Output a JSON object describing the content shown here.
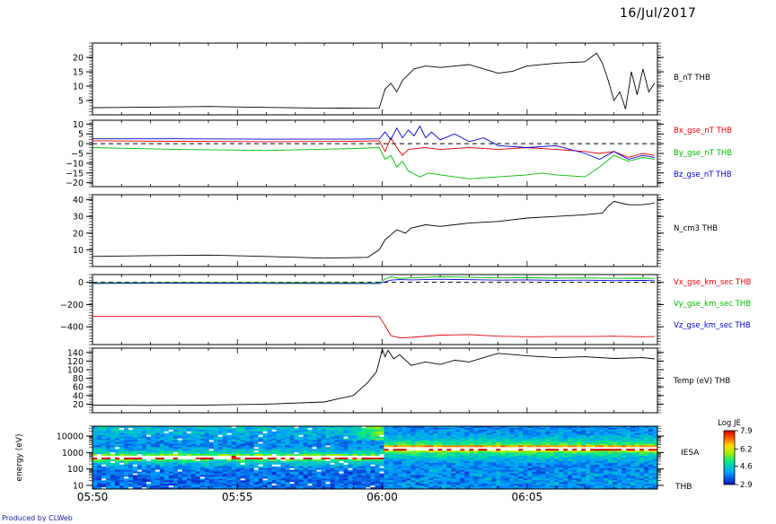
{
  "date": "16/Jul/2017",
  "footer": "Produced by CLWeb",
  "x_axis": {
    "labels": [
      "05:50",
      "05:55",
      "06:00",
      "06:05"
    ],
    "minutes": [
      0,
      5,
      10,
      15
    ],
    "range_minutes": [
      0,
      19.5
    ]
  },
  "spectrogram": {
    "ylabel": "energy (eV)",
    "yticks": [
      "10000",
      "1000",
      "100",
      "10"
    ],
    "label_top": "IESA",
    "label_bottom": "THB",
    "colorbar_title": "Log JE",
    "colorbar_ticks": [
      "7.9",
      "6.2",
      "4.6",
      "2.9"
    ],
    "colorbar_range": [
      2.9,
      7.9
    ]
  },
  "chart_data": [
    {
      "type": "line",
      "x_unit": "minutes since 05:50 UT",
      "yticks": [
        5,
        10,
        15,
        20
      ],
      "ylim": [
        0,
        25
      ],
      "series": [
        {
          "name": "B_nT THB",
          "color": "#000000",
          "x": [
            0,
            2,
            4,
            6,
            8,
            9.9,
            10.1,
            10.3,
            10.5,
            10.7,
            10.9,
            11.1,
            11.5,
            12,
            13,
            14,
            14.5,
            15,
            16,
            17,
            17.4,
            17.6,
            17.8,
            18,
            18.2,
            18.4,
            18.6,
            18.8,
            19,
            19.2,
            19.4
          ],
          "y": [
            2.5,
            2.7,
            2.9,
            2.6,
            2.3,
            2.4,
            9,
            11,
            8,
            12,
            14,
            16,
            17,
            16.5,
            17.5,
            14.5,
            15.2,
            17,
            18,
            18.5,
            21.5,
            18,
            12,
            5,
            8,
            2,
            15,
            7,
            16,
            8,
            11
          ]
        }
      ]
    },
    {
      "type": "line",
      "x_unit": "minutes since 05:50 UT",
      "yticks": [
        10,
        5,
        0,
        -5,
        -10,
        -15,
        -20
      ],
      "ylim": [
        -22,
        12
      ],
      "reference_line": 0,
      "series": [
        {
          "name": "Bx_gse_nT THB",
          "color": "#e8000b",
          "x": [
            0,
            3,
            6,
            9,
            9.9,
            10.1,
            10.3,
            10.5,
            10.7,
            10.9,
            11.5,
            12,
            13,
            14,
            15,
            16,
            17,
            17.5,
            18,
            18.5,
            19,
            19.4
          ],
          "y": [
            1.5,
            1.2,
            1.0,
            1.2,
            1.5,
            -4,
            3,
            -2,
            -6,
            -3,
            -2,
            -3,
            -2,
            -3,
            -2,
            -3,
            -4,
            -5,
            -4,
            -7,
            -5,
            -6
          ]
        },
        {
          "name": "By_gse_nT THB",
          "color": "#00bb00",
          "x": [
            0,
            3,
            6,
            9,
            9.9,
            10.1,
            10.3,
            10.5,
            10.7,
            10.9,
            11.3,
            11.6,
            12,
            13,
            14,
            15,
            15.5,
            16,
            17,
            17.5,
            18,
            18.5,
            19,
            19.4
          ],
          "y": [
            -2,
            -3,
            -3.5,
            -2.5,
            -2,
            -8,
            -6,
            -12,
            -9,
            -14,
            -17,
            -15,
            -16,
            -18,
            -17,
            -16,
            -15,
            -16,
            -17,
            -12,
            -6,
            -9,
            -7,
            -8
          ]
        },
        {
          "name": "Bz_gse_nT THB",
          "color": "#0000d0",
          "x": [
            0,
            3,
            6,
            9,
            9.9,
            10.1,
            10.3,
            10.5,
            10.7,
            10.9,
            11.1,
            11.3,
            11.5,
            11.7,
            12,
            12.5,
            13,
            13.5,
            14,
            15,
            16,
            17,
            17.5,
            18,
            18.5,
            19,
            19.4
          ],
          "y": [
            2.5,
            2.5,
            2.3,
            2.3,
            2.5,
            6,
            2,
            8,
            3,
            7,
            4,
            9,
            3,
            6,
            2,
            5,
            1,
            3,
            -1,
            -2,
            -1,
            -5,
            -8,
            -4,
            -8,
            -6,
            -7
          ]
        }
      ]
    },
    {
      "type": "line",
      "x_unit": "minutes since 05:50 UT",
      "yticks": [
        10,
        20,
        30,
        40
      ],
      "ylim": [
        0,
        43
      ],
      "series": [
        {
          "name": "N_cm3 THB",
          "color": "#000000",
          "x": [
            0,
            2,
            4,
            6,
            8,
            9.5,
            9.9,
            10.1,
            10.3,
            10.5,
            10.8,
            11,
            11.5,
            12,
            13,
            14,
            15,
            16,
            17,
            17.6,
            17.8,
            18,
            18.5,
            19,
            19.4
          ],
          "y": [
            6,
            6.5,
            6.8,
            6,
            5,
            5.5,
            10,
            16,
            19,
            22,
            20,
            23,
            25,
            24,
            26,
            27,
            29,
            30,
            31,
            32,
            36,
            39,
            37,
            37,
            38
          ]
        }
      ]
    },
    {
      "type": "line",
      "x_unit": "minutes since 05:50 UT",
      "yticks": [
        0,
        -200,
        -400
      ],
      "ylim": [
        -560,
        70
      ],
      "reference_line": 0,
      "series": [
        {
          "name": "Vx_gse_km_sec THB",
          "color": "#e8000b",
          "x": [
            0,
            3,
            6,
            9,
            9.9,
            10.1,
            10.3,
            10.6,
            11,
            12,
            13,
            14,
            15,
            16,
            17,
            18,
            19,
            19.4
          ],
          "y": [
            -305,
            -305,
            -305,
            -305,
            -308,
            -390,
            -480,
            -500,
            -495,
            -475,
            -470,
            -485,
            -490,
            -488,
            -488,
            -485,
            -490,
            -488
          ]
        },
        {
          "name": "Vy_gse_km_sec THB",
          "color": "#00bb00",
          "x": [
            0,
            3,
            6,
            9,
            9.9,
            10.1,
            10.3,
            10.6,
            11,
            12,
            13,
            14,
            15,
            16,
            17,
            18,
            19,
            19.4
          ],
          "y": [
            -5,
            -3,
            -2,
            -4,
            -5,
            30,
            50,
            35,
            40,
            50,
            45,
            40,
            42,
            38,
            40,
            36,
            38,
            35
          ]
        },
        {
          "name": "Vz_gse_km_sec THB",
          "color": "#0000d0",
          "x": [
            0,
            3,
            6,
            9,
            9.9,
            10.1,
            10.3,
            10.6,
            11,
            12,
            13,
            14,
            15,
            16,
            17,
            18,
            19,
            19.4
          ],
          "y": [
            -10,
            -8,
            -9,
            -10,
            -10,
            5,
            20,
            25,
            22,
            28,
            24,
            20,
            22,
            18,
            20,
            16,
            18,
            15
          ]
        }
      ]
    },
    {
      "type": "line",
      "x_unit": "minutes since 05:50 UT",
      "yticks": [
        20,
        40,
        60,
        80,
        100,
        120,
        140
      ],
      "ylim": [
        0,
        150
      ],
      "series": [
        {
          "name": "Temp (eV) THB",
          "color": "#000000",
          "x": [
            0,
            2,
            4,
            6,
            8,
            9,
            9.5,
            9.8,
            9.9,
            10.0,
            10.1,
            10.2,
            10.4,
            10.6,
            11,
            11.5,
            12,
            12.5,
            13,
            14,
            15,
            16,
            17,
            18,
            19,
            19.4
          ],
          "y": [
            18,
            17,
            18,
            20,
            25,
            40,
            70,
            95,
            120,
            148,
            130,
            145,
            125,
            135,
            110,
            118,
            112,
            122,
            118,
            138,
            132,
            128,
            130,
            126,
            128,
            125
          ]
        }
      ]
    }
  ]
}
